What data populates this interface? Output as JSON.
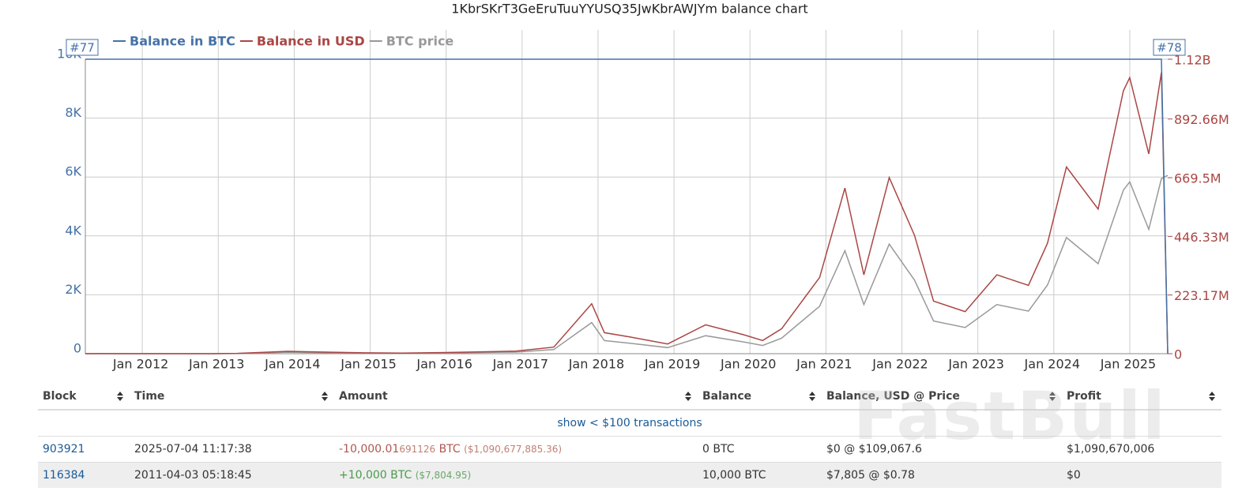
{
  "chart_data": {
    "type": "line",
    "title": "1KbrSKrT3GeEruTuuYYUSQ35JwKbrAWJYm balance chart",
    "x": [
      "2011-04",
      "2011-06",
      "2011-12",
      "2012-06",
      "2012-12",
      "2013-04",
      "2013-12",
      "2014-06",
      "2014-12",
      "2015-06",
      "2015-12",
      "2016-06",
      "2016-12",
      "2017-06",
      "2017-12",
      "2018-02",
      "2018-06",
      "2018-12",
      "2019-06",
      "2019-12",
      "2020-03",
      "2020-06",
      "2020-12",
      "2021-04",
      "2021-07",
      "2021-11",
      "2022-03",
      "2022-06",
      "2022-11",
      "2023-04",
      "2023-09",
      "2023-12",
      "2024-03",
      "2024-08",
      "2024-12",
      "2025-01",
      "2025-04",
      "2025-06",
      "2025-07"
    ],
    "series": [
      {
        "name": "Balance in BTC",
        "color": "#4572a7",
        "axis": "y",
        "values": [
          10000,
          10000,
          10000,
          10000,
          10000,
          10000,
          10000,
          10000,
          10000,
          10000,
          10000,
          10000,
          10000,
          10000,
          10000,
          10000,
          10000,
          10000,
          10000,
          10000,
          10000,
          10000,
          10000,
          10000,
          10000,
          10000,
          10000,
          10000,
          10000,
          10000,
          10000,
          10000,
          10000,
          10000,
          10000,
          10000,
          10000,
          10000,
          0
        ]
      },
      {
        "name": "Balance in USD",
        "color": "#aa4643",
        "axis": "y2",
        "values": [
          7800,
          170000,
          40000,
          60000,
          130000,
          1300000,
          9000000,
          6000000,
          3200000,
          2500000,
          4300000,
          7000000,
          9600000,
          25000000,
          190000000,
          80000000,
          64000000,
          37000000,
          110000000,
          72000000,
          50000000,
          95000000,
          290000000,
          630000000,
          300000000,
          670000000,
          450000000,
          200000000,
          160000000,
          300000000,
          260000000,
          420000000,
          710000000,
          550000000,
          1000000000,
          1050000000,
          760000000,
          1070000000,
          0
        ]
      },
      {
        "name": "BTC price",
        "color": "#999999",
        "axis": "y3",
        "values": [
          0.78,
          17,
          4,
          6,
          13,
          130,
          900,
          600,
          320,
          250,
          430,
          700,
          960,
          2500,
          19000,
          8000,
          6400,
          3700,
          11000,
          7200,
          5000,
          9500,
          29000,
          63000,
          30000,
          67000,
          45000,
          20000,
          16000,
          30000,
          26000,
          42000,
          71000,
          55000,
          100000,
          105000,
          76000,
          107000,
          109067.6
        ]
      }
    ],
    "xlim": [
      "2011-04",
      "2025-07"
    ],
    "xticks": [
      {
        "value": "2012-01",
        "label": "Jan 2012"
      },
      {
        "value": "2013-01",
        "label": "Jan 2013"
      },
      {
        "value": "2014-01",
        "label": "Jan 2014"
      },
      {
        "value": "2015-01",
        "label": "Jan 2015"
      },
      {
        "value": "2016-01",
        "label": "Jan 2016"
      },
      {
        "value": "2017-01",
        "label": "Jan 2017"
      },
      {
        "value": "2018-01",
        "label": "Jan 2018"
      },
      {
        "value": "2019-01",
        "label": "Jan 2019"
      },
      {
        "value": "2020-01",
        "label": "Jan 2020"
      },
      {
        "value": "2021-01",
        "label": "Jan 2021"
      },
      {
        "value": "2022-01",
        "label": "Jan 2022"
      },
      {
        "value": "2023-01",
        "label": "Jan 2023"
      },
      {
        "value": "2024-01",
        "label": "Jan 2024"
      },
      {
        "value": "2025-01",
        "label": "Jan 2025"
      }
    ],
    "ylim": [
      0,
      10000
    ],
    "yticks": [
      0,
      {
        "value": 2000,
        "label": "2K"
      },
      {
        "value": 4000,
        "label": "4K"
      },
      {
        "value": 6000,
        "label": "6K"
      },
      {
        "value": 8000,
        "label": "8K"
      },
      {
        "value": 10000,
        "label": "10K"
      }
    ],
    "y2lim": [
      0,
      1120000000
    ],
    "y2ticks": [
      0,
      {
        "value": 223170000,
        "label": "223.17M"
      },
      {
        "value": 446330000,
        "label": "446.33M"
      },
      {
        "value": 669500000,
        "label": "669.5M"
      },
      {
        "value": 892660000,
        "label": "892.66M"
      },
      {
        "value": 1120000000,
        "label": "1.12B"
      }
    ],
    "y3lim": [
      0,
      180000
    ],
    "grid": true,
    "legend": "top-left",
    "annotations": [
      {
        "x": "2011-04",
        "label": "#77"
      },
      {
        "x": "2025-07",
        "label": "#78"
      }
    ]
  },
  "table": {
    "headers": [
      "Block",
      "Time",
      "Amount",
      "Balance",
      "Balance, USD @ Price",
      "Profit"
    ],
    "toggle": "show < $100 transactions",
    "rows": [
      {
        "block": "903921",
        "time": "2025-07-04 11:17:38",
        "amount_main": "-10,000.01",
        "amount_tail": "691126",
        "amount_unit": " BTC",
        "amount_usd": "($1,090,677,885.36)",
        "balance": "0 BTC",
        "balance_usd": "$0 @ $109,067.6",
        "profit": "$1,090,670,006"
      },
      {
        "block": "116384",
        "time": "2011-04-03 05:18:45",
        "amount_main": "+10,000",
        "amount_tail": "",
        "amount_unit": " BTC",
        "amount_usd": "($7,804.95)",
        "balance": "10,000 BTC",
        "balance_usd": "$7,805 @ $0.78",
        "profit": "$0"
      }
    ]
  },
  "watermark": "FastBull"
}
